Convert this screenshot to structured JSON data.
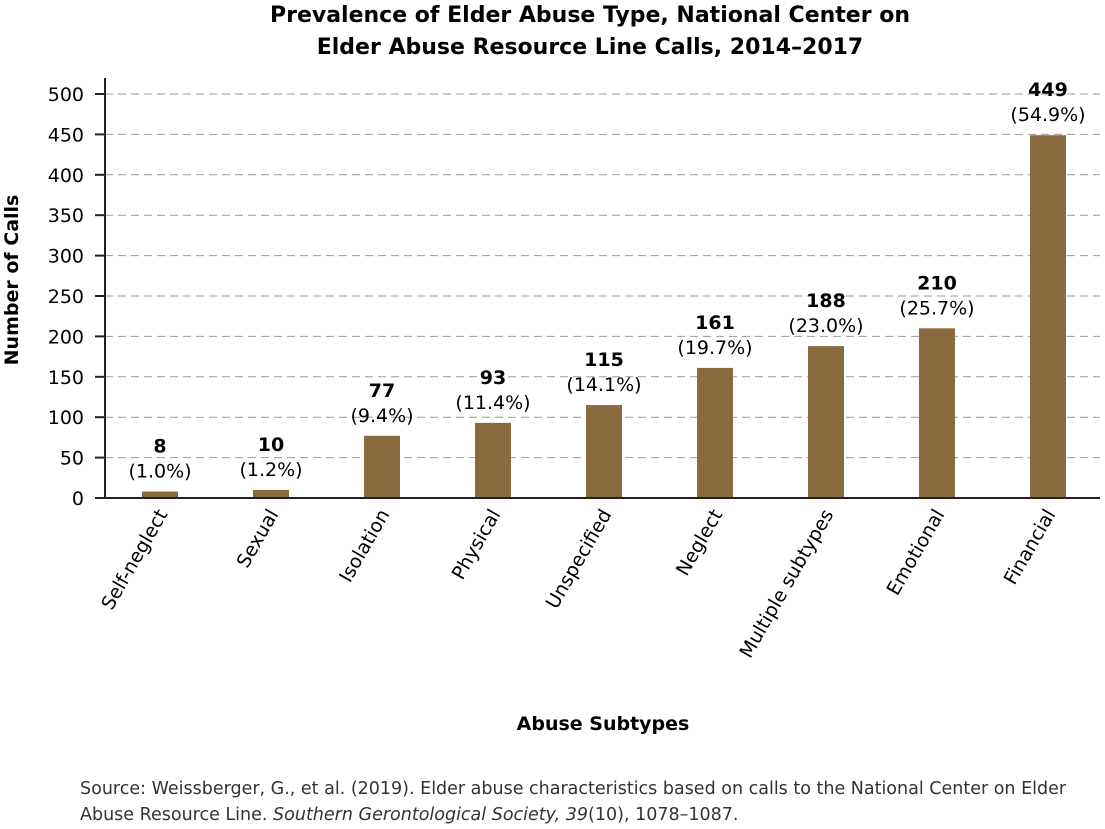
{
  "chart_data": {
    "type": "bar",
    "title_line1": "Prevalence of Elder Abuse Type, National Center on",
    "title_line2": "Elder Abuse Resource Line Calls, 2014–2017",
    "xlabel": "Abuse Subtypes",
    "ylabel": "Number of Calls",
    "ylim": [
      0,
      500
    ],
    "yticks": [
      0,
      50,
      100,
      150,
      200,
      250,
      300,
      350,
      400,
      450,
      500
    ],
    "grid": true,
    "bar_color": "#8b6a3e",
    "categories": [
      "Self-neglect",
      "Sexual",
      "Isolation",
      "Physical",
      "Unspecified",
      "Neglect",
      "Multiple subtypes",
      "Emotional",
      "Financial"
    ],
    "values": [
      8,
      10,
      77,
      93,
      115,
      161,
      188,
      210,
      449
    ],
    "percent_labels": [
      "(1.0%)",
      "(1.2%)",
      "(9.4%)",
      "(11.4%)",
      "(14.1%)",
      "(19.7%)",
      "(23.0%)",
      "(25.7%)",
      "(54.9%)"
    ]
  },
  "source": {
    "prefix": "Source: Weissberger, G., et al. (2019). Elder abuse characteristics based on calls to the National Center on Elder Abuse Resource Line. ",
    "journal": "Southern Gerontological Society, 39",
    "suffix": "(10), 1078–1087."
  }
}
